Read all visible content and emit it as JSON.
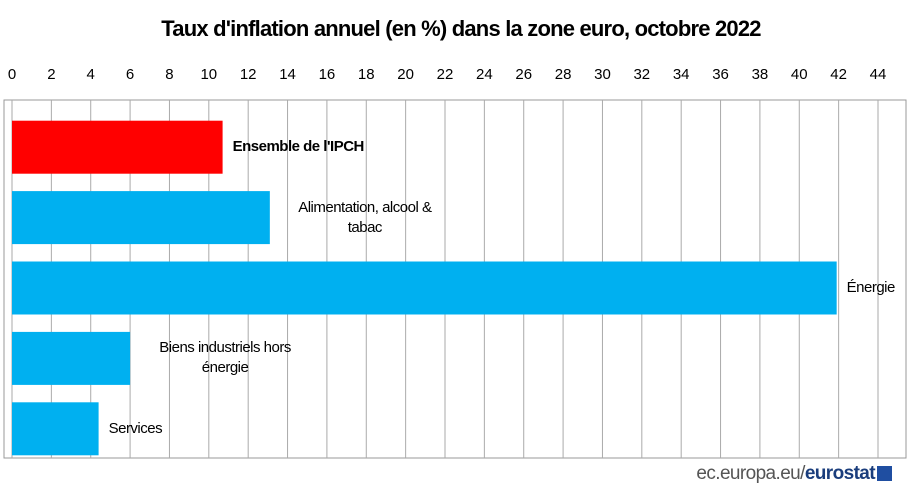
{
  "chart_data": {
    "type": "hbar",
    "title": "Taux d'inflation annuel (en %) dans la zone euro, octobre 2022",
    "categories": [
      "Ensemble de l'IPCH",
      "Alimentation, alcool & tabac",
      "Énergie",
      "Biens industriels hors énergie",
      "Services"
    ],
    "values": [
      10.7,
      13.1,
      41.9,
      6.0,
      4.4
    ],
    "colors": [
      "#ff0000",
      "#00b0f0",
      "#00b0f0",
      "#00b0f0",
      "#00b0f0"
    ],
    "xlim": [
      0,
      44
    ],
    "xticks": [
      0,
      2,
      4,
      6,
      8,
      10,
      12,
      14,
      16,
      18,
      20,
      22,
      24,
      26,
      28,
      30,
      32,
      34,
      36,
      38,
      40,
      42,
      44
    ],
    "grid": true,
    "source": {
      "site": "ec.europa.eu/",
      "brand": "eurostat"
    }
  }
}
